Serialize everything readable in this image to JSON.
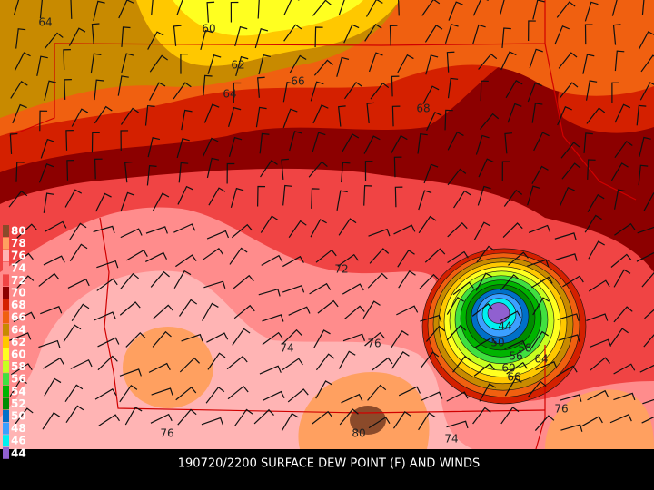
{
  "caption": "190720/2200 SURFACE DEW POINT (F) AND WINDS",
  "legend": {
    "labels": [
      "80",
      "78",
      "76",
      "74",
      "72",
      "70",
      "68",
      "66",
      "64",
      "62",
      "60",
      "58",
      "56",
      "54",
      "52",
      "50",
      "48",
      "46",
      "44"
    ],
    "colors": [
      "#8b4a2a",
      "#ffa060",
      "#ffb4b4",
      "#ff8c8c",
      "#f04444",
      "#8c0000",
      "#d42000",
      "#f06010",
      "#c88a00",
      "#ffc800",
      "#ffff20",
      "#c8ff20",
      "#40e040",
      "#00b400",
      "#008c00",
      "#0070c8",
      "#3ca0ff",
      "#00f0f0",
      "#9060d0"
    ]
  },
  "contour_labels": [
    "64",
    "60",
    "62",
    "64",
    "66",
    "68",
    "72",
    "74",
    "76",
    "76",
    "80",
    "74",
    "76",
    "44",
    "50",
    "56",
    "58",
    "60",
    "64",
    "66"
  ]
}
